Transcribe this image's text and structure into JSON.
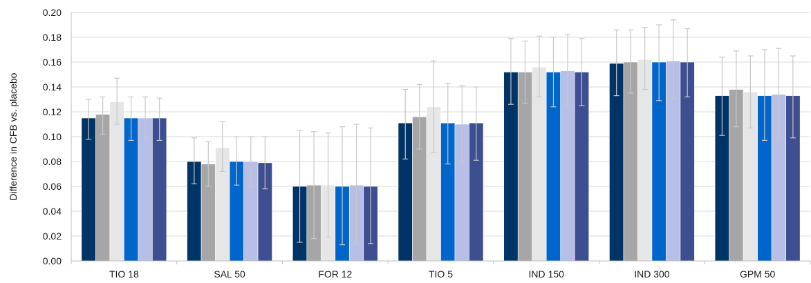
{
  "chart_data": {
    "type": "bar",
    "title": "",
    "xlabel": "",
    "ylabel": "Difference in CFB vs. placebo",
    "ylim": [
      0,
      0.2
    ],
    "yticks": [
      "0.00",
      "0.02",
      "0.04",
      "0.06",
      "0.08",
      "0.10",
      "0.12",
      "0.14",
      "0.16",
      "0.18",
      "0.20"
    ],
    "grid": true,
    "legend": "none",
    "categories": [
      "TIO 18",
      "SAL 50",
      "FOR 12",
      "TIO 5",
      "IND 150",
      "IND 300",
      "GPM 50"
    ],
    "series": [
      {
        "color": "#003366",
        "values": [
          0.115,
          0.08,
          0.06,
          0.111,
          0.152,
          0.159,
          0.133
        ],
        "err_low": [
          0.098,
          0.062,
          0.015,
          0.082,
          0.126,
          0.133,
          0.101
        ],
        "err_high": [
          0.13,
          0.099,
          0.105,
          0.138,
          0.179,
          0.186,
          0.164
        ]
      },
      {
        "color": "#a6a6a6",
        "values": [
          0.118,
          0.078,
          0.061,
          0.116,
          0.152,
          0.16,
          0.138
        ],
        "err_low": [
          0.102,
          0.06,
          0.018,
          0.09,
          0.127,
          0.135,
          0.108
        ],
        "err_high": [
          0.132,
          0.096,
          0.104,
          0.142,
          0.177,
          0.186,
          0.169
        ]
      },
      {
        "color": "#e6e6e6",
        "values": [
          0.128,
          0.091,
          0.061,
          0.124,
          0.156,
          0.162,
          0.136
        ],
        "err_low": [
          0.11,
          0.072,
          0.019,
          0.087,
          0.132,
          0.138,
          0.107
        ],
        "err_high": [
          0.147,
          0.112,
          0.103,
          0.161,
          0.181,
          0.188,
          0.165
        ]
      },
      {
        "color": "#0066cc",
        "values": [
          0.115,
          0.08,
          0.06,
          0.111,
          0.152,
          0.16,
          0.133
        ],
        "err_low": [
          0.097,
          0.061,
          0.013,
          0.078,
          0.124,
          0.129,
          0.097
        ],
        "err_high": [
          0.132,
          0.1,
          0.108,
          0.143,
          0.18,
          0.19,
          0.17
        ]
      },
      {
        "color": "#b8bfe6",
        "values": [
          0.115,
          0.08,
          0.061,
          0.11,
          0.153,
          0.161,
          0.134
        ],
        "err_low": [
          0.098,
          0.06,
          0.014,
          0.08,
          0.124,
          0.131,
          0.098
        ],
        "err_high": [
          0.132,
          0.1,
          0.11,
          0.141,
          0.182,
          0.194,
          0.171
        ]
      },
      {
        "color": "#3d4f91",
        "values": [
          0.115,
          0.079,
          0.06,
          0.111,
          0.152,
          0.16,
          0.133
        ],
        "err_low": [
          0.097,
          0.058,
          0.014,
          0.081,
          0.125,
          0.132,
          0.099
        ],
        "err_high": [
          0.131,
          0.1,
          0.107,
          0.14,
          0.179,
          0.187,
          0.165
        ]
      }
    ]
  }
}
